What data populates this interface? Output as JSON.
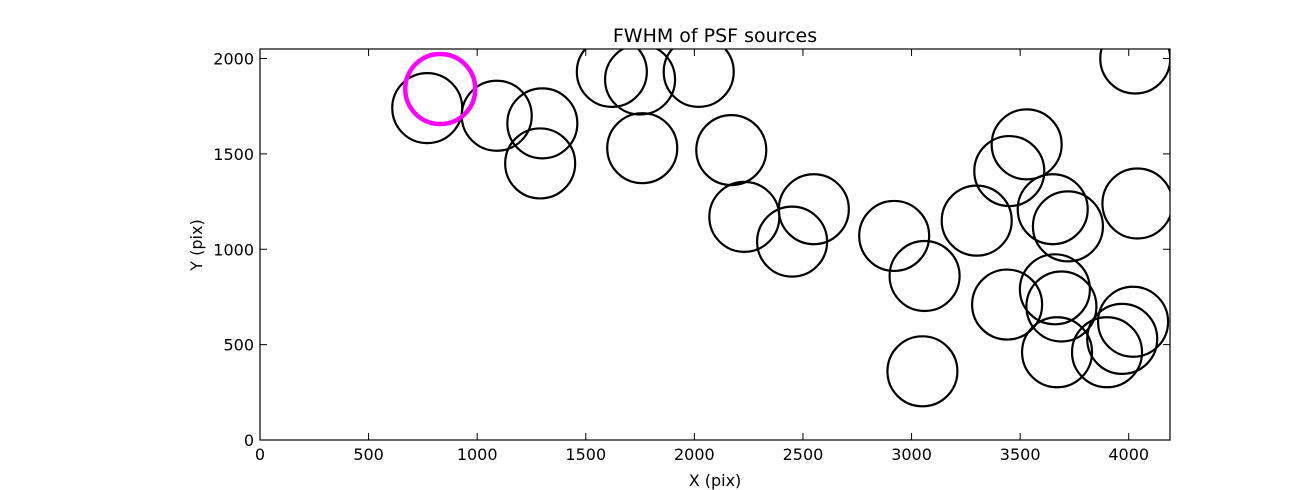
{
  "chart_data": {
    "type": "scatter",
    "title": "FWHM of PSF sources",
    "xlabel": "X (pix)",
    "ylabel": "Y (pix)",
    "xlim": [
      0,
      4190
    ],
    "ylim": [
      0,
      2050
    ],
    "xticks": [
      0,
      500,
      1000,
      1500,
      2000,
      2500,
      3000,
      3500,
      4000
    ],
    "yticks": [
      0,
      500,
      1000,
      1500,
      2000
    ],
    "grid": false,
    "marker": "open-circle",
    "colors": {
      "default": "#000000",
      "highlight": "#ff00ff"
    },
    "series": [
      {
        "color": "#000000",
        "points": [
          {
            "x": 770,
            "y": 1740
          },
          {
            "x": 1090,
            "y": 1700
          },
          {
            "x": 1300,
            "y": 1660
          },
          {
            "x": 1290,
            "y": 1450
          },
          {
            "x": 1620,
            "y": 1930
          },
          {
            "x": 1750,
            "y": 1890
          },
          {
            "x": 2020,
            "y": 1930
          },
          {
            "x": 1760,
            "y": 1530
          },
          {
            "x": 2170,
            "y": 1520
          },
          {
            "x": 2230,
            "y": 1170
          },
          {
            "x": 2550,
            "y": 1210
          },
          {
            "x": 2450,
            "y": 1040
          },
          {
            "x": 2920,
            "y": 1070
          },
          {
            "x": 3060,
            "y": 860
          },
          {
            "x": 3050,
            "y": 360
          },
          {
            "x": 3300,
            "y": 1150
          },
          {
            "x": 3450,
            "y": 1410
          },
          {
            "x": 3530,
            "y": 1550
          },
          {
            "x": 3650,
            "y": 1210
          },
          {
            "x": 3720,
            "y": 1120
          },
          {
            "x": 4040,
            "y": 1240
          },
          {
            "x": 4030,
            "y": 2000
          },
          {
            "x": 3440,
            "y": 710
          },
          {
            "x": 3660,
            "y": 790
          },
          {
            "x": 3690,
            "y": 700
          },
          {
            "x": 3670,
            "y": 460
          },
          {
            "x": 3900,
            "y": 460
          },
          {
            "x": 3970,
            "y": 530
          },
          {
            "x": 4020,
            "y": 620
          }
        ]
      },
      {
        "color": "#ff00ff",
        "points": [
          {
            "x": 830,
            "y": 1840
          }
        ]
      }
    ]
  }
}
